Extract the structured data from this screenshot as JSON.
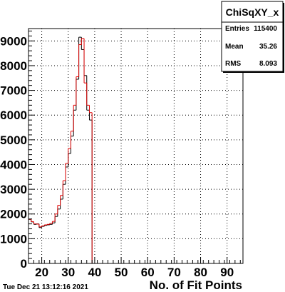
{
  "timestamp": "Tue Dec 21 13:12:16 2021",
  "stats_box": {
    "title": "ChiSqXY_x",
    "rows": [
      {
        "label": "Entries",
        "value": "115400"
      },
      {
        "label": "Mean",
        "value": "35.26"
      },
      {
        "label": "RMS",
        "value": "8.093"
      }
    ]
  },
  "chart_data": {
    "type": "histogram",
    "title": "",
    "xlabel": "No. of Fit Points",
    "ylabel": "",
    "xlim": [
      15,
      96
    ],
    "ylim": [
      0,
      9500
    ],
    "x_ticks": [
      20,
      30,
      40,
      50,
      60,
      70,
      80,
      90
    ],
    "x_tick_labels": [
      "20",
      "30",
      "40",
      "50",
      "60",
      "70",
      "80",
      "90"
    ],
    "y_ticks": [
      0,
      1000,
      2000,
      3000,
      4000,
      5000,
      6000,
      7000,
      8000,
      9000
    ],
    "y_tick_labels": [
      "0",
      "1000",
      "2000",
      "3000",
      "4000",
      "5000",
      "6000",
      "7000",
      "8000",
      "9000"
    ],
    "grid": true,
    "bin_width": 1,
    "bins_x_start": 15,
    "series": [
      {
        "color": "#000000",
        "values": [
          1780,
          1680,
          1580,
          1600,
          1450,
          1500,
          1540,
          1560,
          1580,
          1640,
          1900,
          2200,
          2600,
          3200,
          3900,
          4450,
          5150,
          6200,
          7450,
          9150,
          8650,
          7600,
          6200,
          5800,
          0,
          0,
          0,
          0,
          0,
          0,
          0,
          0,
          0,
          0,
          0,
          0,
          0,
          0,
          0,
          0,
          0,
          0,
          0,
          0,
          0,
          0,
          0,
          0,
          0,
          0,
          0,
          0,
          0,
          0,
          0,
          0,
          0,
          0,
          0,
          0,
          0,
          0,
          0,
          0,
          0,
          0,
          0,
          0,
          0,
          0,
          0,
          0,
          0,
          0,
          0,
          0,
          0,
          0,
          0,
          0,
          0
        ]
      },
      {
        "color": "#e00000",
        "values": [
          1790,
          1690,
          1600,
          1590,
          1480,
          1520,
          1560,
          1580,
          1620,
          1700,
          2000,
          2350,
          2750,
          3350,
          4050,
          4650,
          5350,
          6400,
          7550,
          8850,
          9100,
          7300,
          6400,
          6100,
          0,
          0,
          0,
          0,
          0,
          0,
          0,
          0,
          0,
          0,
          0,
          0,
          0,
          0,
          0,
          0,
          0,
          0,
          0,
          0,
          0,
          0,
          0,
          0,
          0,
          0,
          0,
          0,
          0,
          0,
          0,
          0,
          0,
          0,
          0,
          0,
          0,
          0,
          0,
          0,
          0,
          0,
          0,
          0,
          0,
          0,
          0,
          0,
          0,
          0,
          0,
          0,
          0,
          0,
          0,
          0,
          0
        ]
      }
    ]
  }
}
